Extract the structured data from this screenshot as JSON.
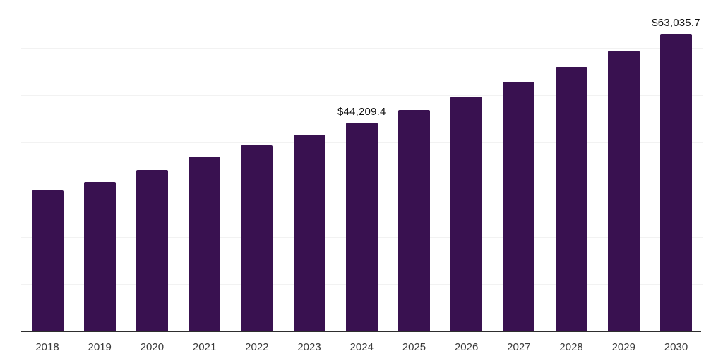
{
  "chart_data": {
    "type": "bar",
    "title": "",
    "xlabel": "",
    "ylabel": "",
    "categories": [
      "2018",
      "2019",
      "2020",
      "2021",
      "2022",
      "2023",
      "2024",
      "2025",
      "2026",
      "2027",
      "2028",
      "2029",
      "2030"
    ],
    "values": [
      29800,
      31700,
      34250,
      36950,
      39450,
      41700,
      44209.4,
      46900,
      49750,
      52790,
      56000,
      59410,
      63035.7
    ],
    "data_labels": [
      {
        "category": "2024",
        "text": "$44,209.4"
      },
      {
        "category": "2030",
        "text": "$63,035.7"
      }
    ],
    "ylim": [
      0,
      70000
    ],
    "gridline_interval": 10000,
    "grid": "horizontal-only",
    "y_tick_labels_visible": false,
    "legend": "none"
  },
  "colors": {
    "bar": "#391150",
    "axis_line": "#2e2e2e",
    "gridline": "#f2f2f2",
    "tick_label": "#3b3b3b",
    "data_label": "#111111",
    "background": "#ffffff"
  }
}
